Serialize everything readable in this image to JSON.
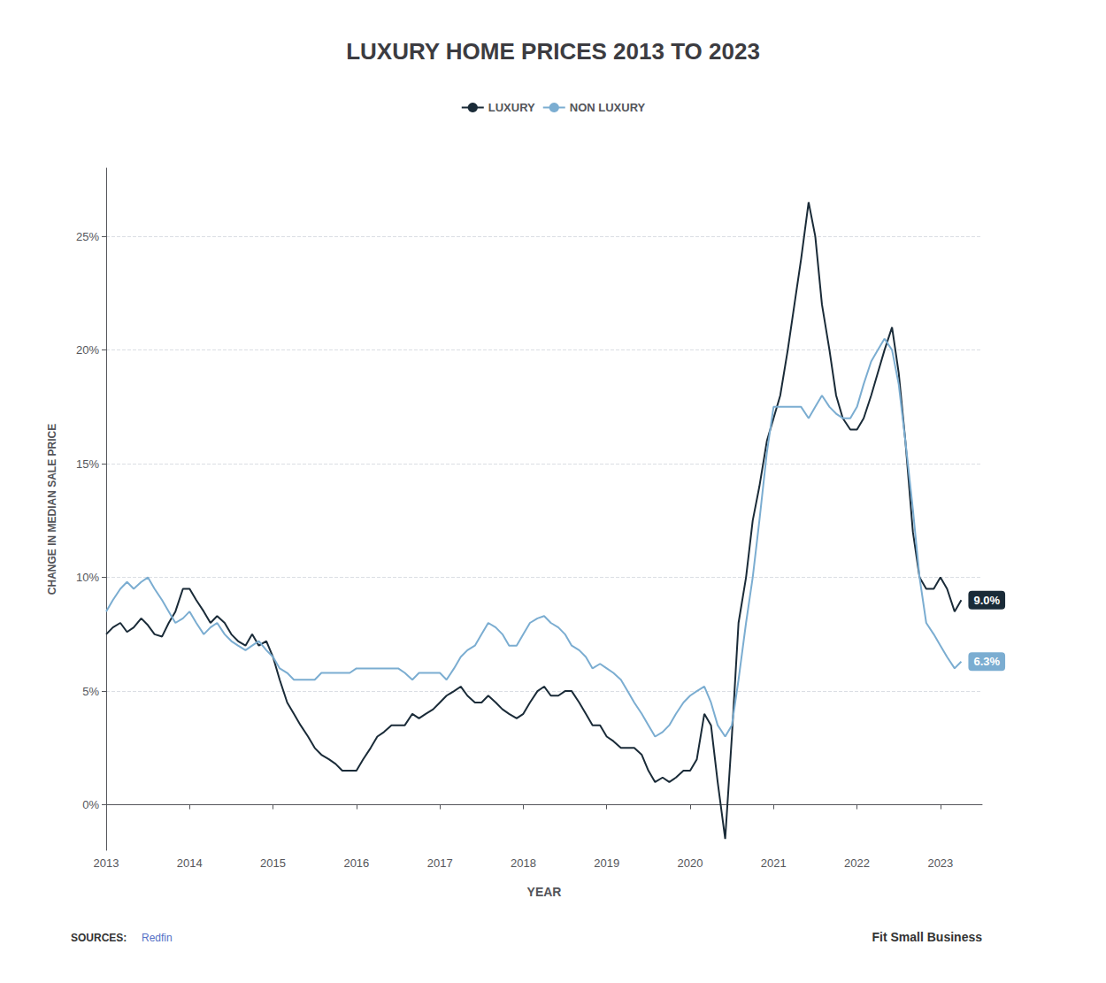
{
  "chart_data": {
    "type": "line",
    "title": "LUXURY HOME PRICES 2013 TO 2023",
    "x_label": "YEAR",
    "y_label": "CHANGE IN MEDIAN SALE PRICE",
    "x": [
      2013.0,
      2013.08,
      2013.17,
      2013.25,
      2013.33,
      2013.42,
      2013.5,
      2013.58,
      2013.67,
      2013.75,
      2013.83,
      2013.92,
      2014.0,
      2014.08,
      2014.17,
      2014.25,
      2014.33,
      2014.42,
      2014.5,
      2014.58,
      2014.67,
      2014.75,
      2014.83,
      2014.92,
      2015.0,
      2015.08,
      2015.17,
      2015.25,
      2015.33,
      2015.42,
      2015.5,
      2015.58,
      2015.67,
      2015.75,
      2015.83,
      2015.92,
      2016.0,
      2016.08,
      2016.17,
      2016.25,
      2016.33,
      2016.42,
      2016.5,
      2016.58,
      2016.67,
      2016.75,
      2016.83,
      2016.92,
      2017.0,
      2017.08,
      2017.17,
      2017.25,
      2017.33,
      2017.42,
      2017.5,
      2017.58,
      2017.67,
      2017.75,
      2017.83,
      2017.92,
      2018.0,
      2018.08,
      2018.17,
      2018.25,
      2018.33,
      2018.42,
      2018.5,
      2018.58,
      2018.67,
      2018.75,
      2018.83,
      2018.92,
      2019.0,
      2019.08,
      2019.17,
      2019.25,
      2019.33,
      2019.42,
      2019.5,
      2019.58,
      2019.67,
      2019.75,
      2019.83,
      2019.92,
      2020.0,
      2020.08,
      2020.17,
      2020.25,
      2020.33,
      2020.42,
      2020.5,
      2020.58,
      2020.67,
      2020.75,
      2020.83,
      2020.92,
      2021.0,
      2021.08,
      2021.17,
      2021.25,
      2021.33,
      2021.42,
      2021.5,
      2021.58,
      2021.67,
      2021.75,
      2021.83,
      2021.92,
      2022.0,
      2022.08,
      2022.17,
      2022.25,
      2022.33,
      2022.42,
      2022.5,
      2022.58,
      2022.67,
      2022.75,
      2022.83,
      2022.92,
      2023.0,
      2023.08,
      2023.17,
      2023.25
    ],
    "series": [
      {
        "name": "LUXURY",
        "color": "#1a2b38",
        "end_label": "9.0%",
        "values": [
          7.5,
          7.8,
          8.0,
          7.6,
          7.8,
          8.2,
          7.9,
          7.5,
          7.4,
          8.0,
          8.5,
          9.5,
          9.5,
          9.0,
          8.5,
          8.0,
          8.3,
          8.0,
          7.5,
          7.2,
          7.0,
          7.5,
          7.0,
          7.2,
          6.5,
          5.5,
          4.5,
          4.0,
          3.5,
          3.0,
          2.5,
          2.2,
          2.0,
          1.8,
          1.5,
          1.5,
          1.5,
          2.0,
          2.5,
          3.0,
          3.2,
          3.5,
          3.5,
          3.5,
          4.0,
          3.8,
          4.0,
          4.2,
          4.5,
          4.8,
          5.0,
          5.2,
          4.8,
          4.5,
          4.5,
          4.8,
          4.5,
          4.2,
          4.0,
          3.8,
          4.0,
          4.5,
          5.0,
          5.2,
          4.8,
          4.8,
          5.0,
          5.0,
          4.5,
          4.0,
          3.5,
          3.5,
          3.0,
          2.8,
          2.5,
          2.5,
          2.5,
          2.2,
          1.5,
          1.0,
          1.2,
          1.0,
          1.2,
          1.5,
          1.5,
          2.0,
          4.0,
          3.5,
          1.0,
          -1.5,
          3.0,
          8.0,
          10.0,
          12.5,
          14.0,
          16.0,
          17.0,
          18.0,
          20.0,
          22.0,
          24.0,
          26.5,
          25.0,
          22.0,
          20.0,
          18.0,
          17.0,
          16.5,
          16.5,
          17.0,
          18.0,
          19.0,
          20.0,
          21.0,
          19.0,
          16.0,
          12.0,
          10.0,
          9.5,
          9.5,
          10.0,
          9.5,
          8.5,
          9.0
        ]
      },
      {
        "name": "NON LUXURY",
        "color": "#7badd1",
        "end_label": "6.3%",
        "values": [
          8.5,
          9.0,
          9.5,
          9.8,
          9.5,
          9.8,
          10.0,
          9.5,
          9.0,
          8.5,
          8.0,
          8.2,
          8.5,
          8.0,
          7.5,
          7.8,
          8.0,
          7.5,
          7.2,
          7.0,
          6.8,
          7.0,
          7.2,
          6.8,
          6.5,
          6.0,
          5.8,
          5.5,
          5.5,
          5.5,
          5.5,
          5.8,
          5.8,
          5.8,
          5.8,
          5.8,
          6.0,
          6.0,
          6.0,
          6.0,
          6.0,
          6.0,
          6.0,
          5.8,
          5.5,
          5.8,
          5.8,
          5.8,
          5.8,
          5.5,
          6.0,
          6.5,
          6.8,
          7.0,
          7.5,
          8.0,
          7.8,
          7.5,
          7.0,
          7.0,
          7.5,
          8.0,
          8.2,
          8.3,
          8.0,
          7.8,
          7.5,
          7.0,
          6.8,
          6.5,
          6.0,
          6.2,
          6.0,
          5.8,
          5.5,
          5.0,
          4.5,
          4.0,
          3.5,
          3.0,
          3.2,
          3.5,
          4.0,
          4.5,
          4.8,
          5.0,
          5.2,
          4.5,
          3.5,
          3.0,
          3.5,
          5.5,
          8.0,
          10.0,
          12.5,
          15.5,
          17.5,
          17.5,
          17.5,
          17.5,
          17.5,
          17.0,
          17.5,
          18.0,
          17.5,
          17.2,
          17.0,
          17.0,
          17.5,
          18.5,
          19.5,
          20.0,
          20.5,
          20.0,
          18.5,
          16.0,
          13.0,
          10.0,
          8.0,
          7.5,
          7.0,
          6.5,
          6.0,
          6.3
        ]
      }
    ],
    "xlim": [
      2013,
      2023.5
    ],
    "xticks": [
      2013,
      2014,
      2015,
      2016,
      2017,
      2018,
      2019,
      2020,
      2021,
      2022,
      2023
    ],
    "ylim": [
      -2,
      28
    ],
    "yticks": [
      {
        "value": 0,
        "label": "0%"
      },
      {
        "value": 5,
        "label": "5%"
      },
      {
        "value": 10,
        "label": "10%"
      },
      {
        "value": 15,
        "label": "15%"
      },
      {
        "value": 20,
        "label": "20%"
      },
      {
        "value": 25,
        "label": "25%"
      }
    ],
    "grid": true,
    "legend": "top",
    "annotations": [
      {
        "text": "SOURCES:"
      },
      {
        "text": "Redfin"
      },
      {
        "text": "Fit Small Business"
      }
    ]
  }
}
